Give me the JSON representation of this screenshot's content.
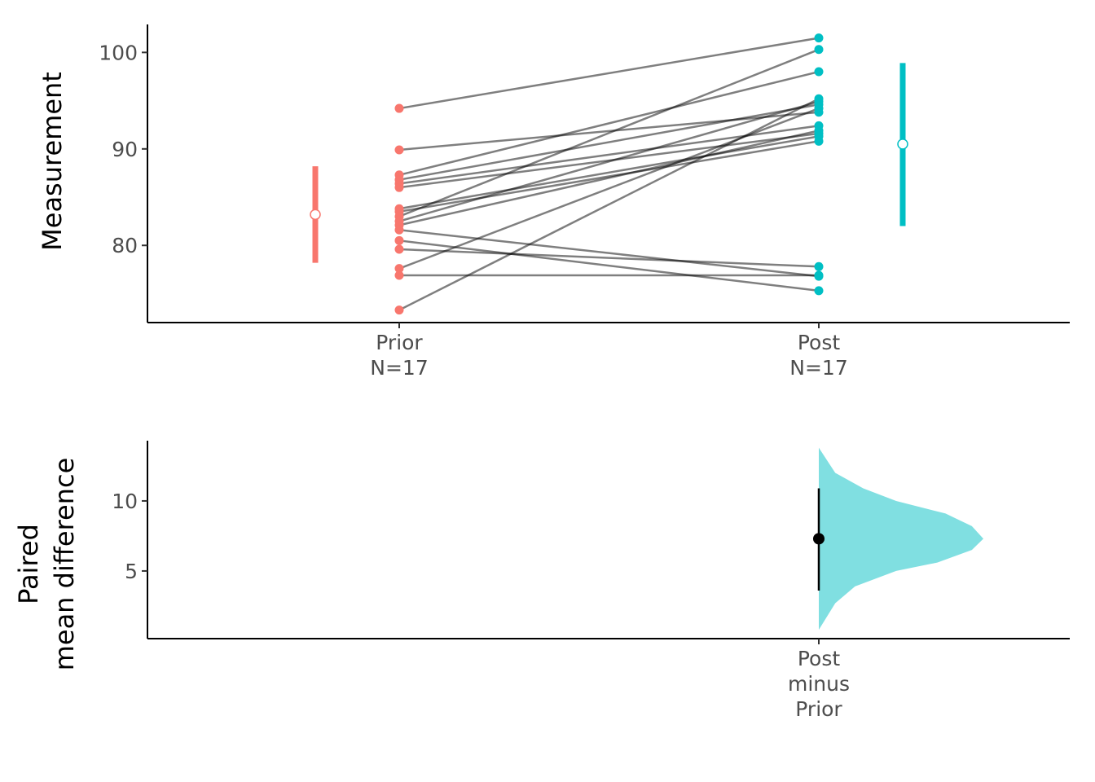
{
  "chart_data": [
    {
      "type": "paired",
      "ylabel": "Measurement",
      "categories": [
        "Prior\nN=17",
        "Post\nN=17"
      ],
      "groups": [
        {
          "color": "#F8766D",
          "values": [
            94.2,
            89.9,
            87.3,
            86.8,
            86.4,
            86.0,
            83.8,
            83.5,
            83.0,
            82.5,
            82.1,
            81.6,
            80.5,
            79.6,
            77.6,
            76.9,
            73.3
          ],
          "mean": 83.2,
          "ci": [
            78.2,
            88.2
          ]
        },
        {
          "color": "#00BFC4",
          "values": [
            101.5,
            93.8,
            98.0,
            94.6,
            92.4,
            91.6,
            91.3,
            90.8,
            100.3,
            94.9,
            91.9,
            76.8,
            75.3,
            77.8,
            94.2,
            76.9,
            95.2
          ],
          "mean": 90.5,
          "ci": [
            82.0,
            98.9
          ]
        }
      ],
      "line_color": "#000000",
      "ylim": [
        72,
        102.9
      ],
      "yticks": [
        80,
        90,
        100
      ]
    },
    {
      "type": "difference",
      "ylabel": "Paired\nmean difference",
      "categories": [
        null,
        "Post\nminus\nPrior"
      ],
      "mean_difference": 7.3,
      "ci": [
        3.6,
        10.9
      ],
      "color": "#80DFE1",
      "density": {
        "y": [
          0.8,
          2.7,
          3.9,
          5.0,
          5.6,
          6.5,
          7.3,
          8.2,
          9.1,
          10.0,
          10.9,
          12.0,
          13.8
        ],
        "values": [
          0,
          0.1,
          0.22,
          0.47,
          0.72,
          0.93,
          1,
          0.93,
          0.77,
          0.47,
          0.27,
          0.1,
          0
        ]
      },
      "ylim": [
        0.17,
        14.3
      ],
      "yticks": [
        5,
        10
      ]
    }
  ]
}
